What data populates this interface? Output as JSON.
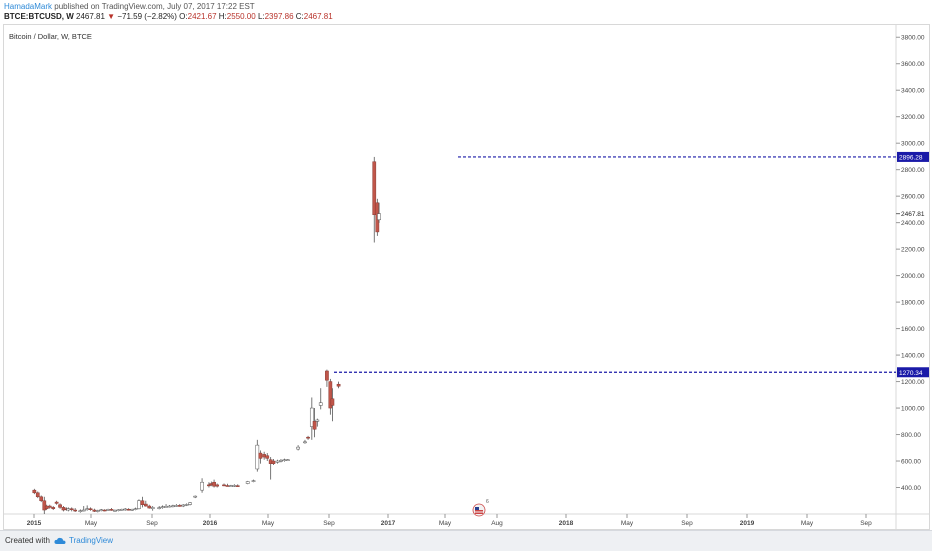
{
  "header": {
    "author": "HamadaMark",
    "published_text": "published on TradingView.com, July 07, 2017 17:22 EST",
    "symbol": "BTCE:BTCUSD, W",
    "last_price": "2467.81",
    "change": "−71.59 (−2.82%)",
    "open_label": "O:",
    "open_value": "2421.67",
    "high_label": "H:",
    "high_value": "2550.00",
    "low_label": "L:",
    "low_value": "2397.86",
    "close_label": "C:",
    "close_value": "2467.81"
  },
  "footer": {
    "created_with": "Created with",
    "brand": "TradingView"
  },
  "colors": {
    "candle_body": "#c0564a",
    "candle_wick": "#555555",
    "hline": "#1a1aa8",
    "label_bg": "#1a1aa8",
    "brand": "#2e8ad8"
  },
  "chart_data": {
    "type": "candlestick",
    "title": "Bitcoin / Dollar, W, BTCE",
    "x_tick_labels": [
      "2015",
      "May",
      "Sep",
      "2016",
      "May",
      "Sep",
      "2017",
      "May",
      "Aug",
      "2018",
      "May",
      "Sep",
      "2019",
      "May",
      "Sep"
    ],
    "y_tick_labels": [
      "400.00",
      "600.00",
      "800.00",
      "1000.00",
      "1200.00",
      "1400.00",
      "1600.00",
      "1800.00",
      "2000.00",
      "2200.00",
      "2400.00",
      "2600.00",
      "2800.00",
      "3000.00",
      "3200.00",
      "3400.00",
      "3600.00",
      "3800.00"
    ],
    "ylim": [
      200,
      3900
    ],
    "horizontal_lines": [
      {
        "value": 2896.28,
        "label": "2896.28"
      },
      {
        "value": 1270.34,
        "label": "1270.34"
      }
    ],
    "last_price_label": "2467.81",
    "last_price_value": 2467.81,
    "candles": [
      {
        "t": 0.1,
        "o": 380,
        "h": 390,
        "l": 350,
        "c": 360
      },
      {
        "t": 1.1,
        "o": 360,
        "h": 370,
        "l": 320,
        "c": 330
      },
      {
        "t": 2.1,
        "o": 330,
        "h": 340,
        "l": 290,
        "c": 300
      },
      {
        "t": 3.0,
        "o": 300,
        "h": 330,
        "l": 200,
        "c": 230
      },
      {
        "t": 3.7,
        "o": 260,
        "h": 270,
        "l": 230,
        "c": 240
      },
      {
        "t": 4.6,
        "o": 260,
        "h": 270,
        "l": 240,
        "c": 250
      },
      {
        "t": 5.6,
        "o": 250,
        "h": 260,
        "l": 230,
        "c": 240
      },
      {
        "t": 6.6,
        "o": 290,
        "h": 300,
        "l": 270,
        "c": 280
      },
      {
        "t": 7.6,
        "o": 270,
        "h": 280,
        "l": 240,
        "c": 250
      },
      {
        "t": 8.6,
        "o": 250,
        "h": 260,
        "l": 220,
        "c": 230
      },
      {
        "t": 9.5,
        "o": 240,
        "h": 250,
        "l": 225,
        "c": 235
      },
      {
        "t": 10.0,
        "o": 230,
        "h": 250,
        "l": 220,
        "c": 240
      },
      {
        "t": 11.0,
        "o": 240,
        "h": 250,
        "l": 220,
        "c": 235
      },
      {
        "t": 12.0,
        "o": 230,
        "h": 245,
        "l": 215,
        "c": 225
      },
      {
        "t": 13.5,
        "o": 220,
        "h": 235,
        "l": 210,
        "c": 225
      },
      {
        "t": 14.5,
        "o": 225,
        "h": 260,
        "l": 220,
        "c": 230
      },
      {
        "t": 15.5,
        "o": 235,
        "h": 265,
        "l": 225,
        "c": 240
      },
      {
        "t": 16.5,
        "o": 240,
        "h": 250,
        "l": 225,
        "c": 235
      },
      {
        "t": 17.6,
        "o": 230,
        "h": 240,
        "l": 215,
        "c": 220
      },
      {
        "t": 18.6,
        "o": 222,
        "h": 232,
        "l": 212,
        "c": 226
      },
      {
        "t": 19.6,
        "o": 226,
        "h": 238,
        "l": 220,
        "c": 232
      },
      {
        "t": 20.6,
        "o": 230,
        "h": 236,
        "l": 220,
        "c": 228
      },
      {
        "t": 21.6,
        "o": 230,
        "h": 240,
        "l": 225,
        "c": 235
      },
      {
        "t": 22.6,
        "o": 235,
        "h": 245,
        "l": 225,
        "c": 230
      },
      {
        "t": 23.6,
        "o": 225,
        "h": 235,
        "l": 218,
        "c": 228
      },
      {
        "t": 24.6,
        "o": 228,
        "h": 236,
        "l": 220,
        "c": 232
      },
      {
        "t": 25.6,
        "o": 230,
        "h": 240,
        "l": 225,
        "c": 236
      },
      {
        "t": 26.6,
        "o": 235,
        "h": 245,
        "l": 225,
        "c": 238
      },
      {
        "t": 27.6,
        "o": 236,
        "h": 244,
        "l": 226,
        "c": 232
      },
      {
        "t": 28.6,
        "o": 232,
        "h": 240,
        "l": 224,
        "c": 236
      },
      {
        "t": 29.6,
        "o": 238,
        "h": 248,
        "l": 228,
        "c": 240
      },
      {
        "t": 30.6,
        "o": 240,
        "h": 310,
        "l": 235,
        "c": 300
      },
      {
        "t": 31.6,
        "o": 300,
        "h": 330,
        "l": 250,
        "c": 270
      },
      {
        "t": 32.6,
        "o": 275,
        "h": 300,
        "l": 255,
        "c": 260
      },
      {
        "t": 33.6,
        "o": 260,
        "h": 270,
        "l": 240,
        "c": 245
      },
      {
        "t": 34.6,
        "o": 240,
        "h": 260,
        "l": 225,
        "c": 250
      },
      {
        "t": 36.5,
        "o": 245,
        "h": 260,
        "l": 235,
        "c": 248
      },
      {
        "t": 37.5,
        "o": 250,
        "h": 265,
        "l": 240,
        "c": 255
      },
      {
        "t": 38.5,
        "o": 255,
        "h": 275,
        "l": 250,
        "c": 258
      },
      {
        "t": 39.5,
        "o": 255,
        "h": 268,
        "l": 250,
        "c": 260
      },
      {
        "t": 40.5,
        "o": 260,
        "h": 270,
        "l": 250,
        "c": 262
      },
      {
        "t": 41.5,
        "o": 262,
        "h": 275,
        "l": 255,
        "c": 265
      },
      {
        "t": 42.5,
        "o": 265,
        "h": 275,
        "l": 255,
        "c": 260
      },
      {
        "t": 43.5,
        "o": 260,
        "h": 275,
        "l": 252,
        "c": 268
      },
      {
        "t": 44.5,
        "o": 268,
        "h": 280,
        "l": 260,
        "c": 272
      },
      {
        "t": 45.5,
        "o": 272,
        "h": 290,
        "l": 265,
        "c": 285
      },
      {
        "t": 47.0,
        "o": 330,
        "h": 340,
        "l": 320,
        "c": 335
      },
      {
        "t": 49.0,
        "o": 380,
        "h": 470,
        "l": 360,
        "c": 440
      },
      {
        "t": 51.0,
        "o": 420,
        "h": 440,
        "l": 400,
        "c": 415
      },
      {
        "t": 51.7,
        "o": 430,
        "h": 445,
        "l": 410,
        "c": 420
      },
      {
        "t": 52.5,
        "o": 440,
        "h": 460,
        "l": 400,
        "c": 410
      },
      {
        "t": 53.4,
        "o": 420,
        "h": 430,
        "l": 400,
        "c": 410
      },
      {
        "t": 55.4,
        "o": 420,
        "h": 430,
        "l": 410,
        "c": 418
      },
      {
        "t": 56.4,
        "o": 415,
        "h": 428,
        "l": 408,
        "c": 412
      },
      {
        "t": 57.4,
        "o": 410,
        "h": 420,
        "l": 405,
        "c": 414
      },
      {
        "t": 58.4,
        "o": 412,
        "h": 425,
        "l": 404,
        "c": 416
      },
      {
        "t": 59.4,
        "o": 414,
        "h": 424,
        "l": 406,
        "c": 410
      },
      {
        "t": 62.3,
        "o": 430,
        "h": 450,
        "l": 425,
        "c": 445
      },
      {
        "t": 64.0,
        "o": 450,
        "h": 460,
        "l": 440,
        "c": 452
      },
      {
        "t": 65.1,
        "o": 540,
        "h": 760,
        "l": 520,
        "c": 720
      },
      {
        "t": 66.0,
        "o": 660,
        "h": 680,
        "l": 580,
        "c": 620
      },
      {
        "t": 67.1,
        "o": 650,
        "h": 670,
        "l": 610,
        "c": 630
      },
      {
        "t": 68.0,
        "o": 640,
        "h": 660,
        "l": 600,
        "c": 620
      },
      {
        "t": 69.0,
        "o": 610,
        "h": 630,
        "l": 460,
        "c": 580
      },
      {
        "t": 69.8,
        "o": 600,
        "h": 615,
        "l": 570,
        "c": 580
      },
      {
        "t": 71.0,
        "o": 590,
        "h": 610,
        "l": 580,
        "c": 600
      },
      {
        "t": 72.0,
        "o": 600,
        "h": 615,
        "l": 590,
        "c": 605
      },
      {
        "t": 73.0,
        "o": 605,
        "h": 618,
        "l": 595,
        "c": 610
      },
      {
        "t": 74.0,
        "o": 605,
        "h": 615,
        "l": 600,
        "c": 610
      },
      {
        "t": 77.0,
        "o": 690,
        "h": 720,
        "l": 680,
        "c": 705
      },
      {
        "t": 79.0,
        "o": 740,
        "h": 760,
        "l": 730,
        "c": 745
      },
      {
        "t": 79.9,
        "o": 780,
        "h": 790,
        "l": 760,
        "c": 775
      },
      {
        "t": 81.0,
        "o": 860,
        "h": 1080,
        "l": 760,
        "c": 1000
      },
      {
        "t": 81.8,
        "o": 900,
        "h": 1000,
        "l": 780,
        "c": 840
      },
      {
        "t": 82.6,
        "o": 900,
        "h": 920,
        "l": 860,
        "c": 910
      },
      {
        "t": 83.6,
        "o": 1020,
        "h": 1150,
        "l": 990,
        "c": 1040
      },
      {
        "t": 85.4,
        "o": 1280,
        "h": 1290,
        "l": 1160,
        "c": 1210
      },
      {
        "t": 86.4,
        "o": 1200,
        "h": 1220,
        "l": 950,
        "c": 1000
      },
      {
        "t": 87.0,
        "o": 1070,
        "h": 1150,
        "l": 900,
        "c": 1020
      },
      {
        "t": 88.8,
        "o": 1180,
        "h": 1200,
        "l": 1150,
        "c": 1165
      },
      {
        "t": 99.2,
        "o": 2860,
        "h": 2896.28,
        "l": 2250,
        "c": 2460
      },
      {
        "t": 100.1,
        "o": 2550,
        "h": 2580,
        "l": 2300,
        "c": 2330
      },
      {
        "t": 100.6,
        "o": 2421.67,
        "h": 2550,
        "l": 2397.86,
        "c": 2467.81
      }
    ]
  }
}
